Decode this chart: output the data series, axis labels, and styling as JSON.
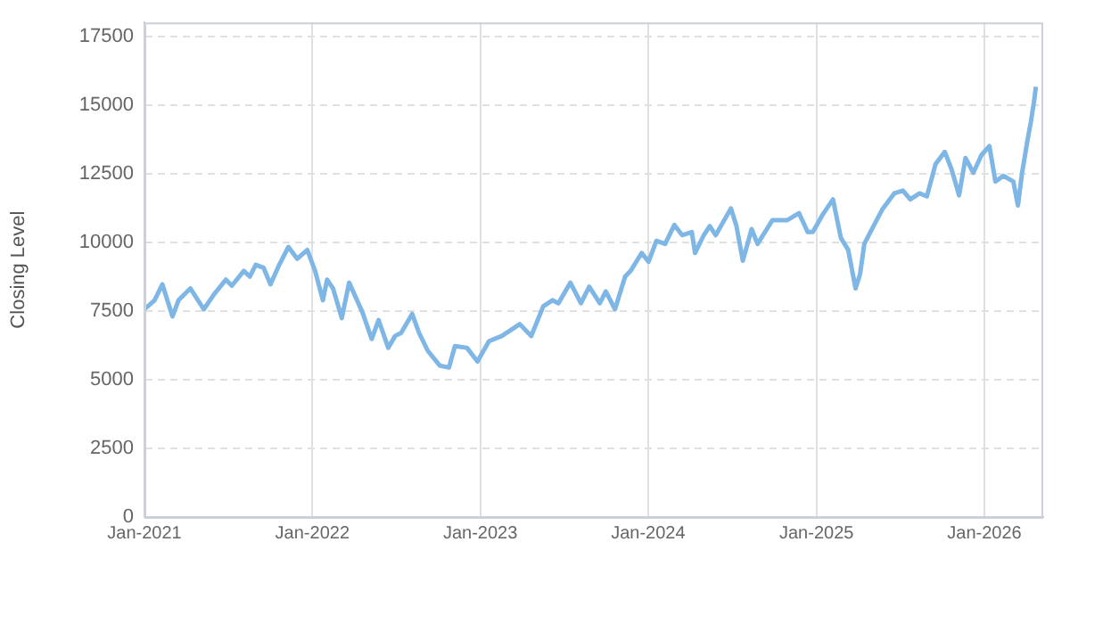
{
  "chart_data": {
    "type": "line",
    "ylabel": "Closing Level",
    "grid": true,
    "marker": "none",
    "legend": false,
    "xlim": [
      "2021-01-01",
      "2026-05-09"
    ],
    "xticks": [
      {
        "value": "2021-01",
        "label": "Jan-2021"
      },
      {
        "value": "2022-01",
        "label": "Jan-2022"
      },
      {
        "value": "2023-01",
        "label": "Jan-2023"
      },
      {
        "value": "2024-01",
        "label": "Jan-2024"
      },
      {
        "value": "2025-01",
        "label": "Jan-2025"
      },
      {
        "value": "2026-01",
        "label": "Jan-2026"
      }
    ],
    "ylim": [
      0,
      18000
    ],
    "yticks": [
      0,
      2500,
      5000,
      7500,
      10000,
      12500,
      15000,
      17500
    ],
    "series": [
      {
        "color": "#7eb6e6",
        "x": [
          "2021-01-01",
          "2021-01-23",
          "2021-02-09",
          "2021-03-03",
          "2021-03-16",
          "2021-04-11",
          "2021-05-10",
          "2021-06-01",
          "2021-06-27",
          "2021-07-10",
          "2021-08-05",
          "2021-08-18",
          "2021-08-31",
          "2021-09-17",
          "2021-10-02",
          "2021-10-21",
          "2021-11-10",
          "2021-11-29",
          "2021-12-21",
          "2022-01-07",
          "2022-01-24",
          "2022-02-02",
          "2022-02-15",
          "2022-03-06",
          "2022-03-22",
          "2022-04-20",
          "2022-05-10",
          "2022-05-25",
          "2022-06-15",
          "2022-06-30",
          "2022-07-13",
          "2022-08-06",
          "2022-08-21",
          "2022-09-09",
          "2022-10-05",
          "2022-10-25",
          "2022-11-07",
          "2022-12-03",
          "2022-12-26",
          "2023-01-20",
          "2023-02-17",
          "2023-03-28",
          "2023-04-22",
          "2023-05-18",
          "2023-06-07",
          "2023-06-20",
          "2023-07-16",
          "2023-08-08",
          "2023-08-26",
          "2023-09-18",
          "2023-10-01",
          "2023-10-21",
          "2023-11-12",
          "2023-11-24",
          "2023-12-18",
          "2024-01-02",
          "2024-01-19",
          "2024-02-07",
          "2024-02-27",
          "2024-03-15",
          "2024-04-05",
          "2024-04-12",
          "2024-05-01",
          "2024-05-14",
          "2024-05-27",
          "2024-06-29",
          "2024-07-11",
          "2024-07-25",
          "2024-08-13",
          "2024-08-26",
          "2024-09-27",
          "2024-10-29",
          "2024-11-24",
          "2024-12-13",
          "2024-12-24",
          "2025-01-15",
          "2025-02-06",
          "2025-02-23",
          "2025-03-11",
          "2025-03-27",
          "2025-04-06",
          "2025-04-15",
          "2025-05-05",
          "2025-05-24",
          "2025-06-19",
          "2025-07-08",
          "2025-07-24",
          "2025-08-13",
          "2025-08-29",
          "2025-09-17",
          "2025-10-07",
          "2025-10-22",
          "2025-11-07",
          "2025-11-21",
          "2025-12-08",
          "2025-12-26",
          "2026-01-12",
          "2026-01-25",
          "2026-02-11",
          "2026-03-05",
          "2026-03-15",
          "2026-03-24",
          "2026-04-06",
          "2026-04-12",
          "2026-04-19",
          "2026-04-23"
        ],
        "values": [
          7560,
          7890,
          8470,
          7300,
          7890,
          8320,
          7560,
          8100,
          8640,
          8420,
          8960,
          8750,
          9180,
          9070,
          8470,
          9180,
          9830,
          9400,
          9720,
          8960,
          7890,
          8640,
          8320,
          7240,
          8530,
          7450,
          6480,
          7170,
          6160,
          6590,
          6700,
          7390,
          6700,
          6050,
          5510,
          5440,
          6220,
          6160,
          5660,
          6400,
          6590,
          7020,
          6590,
          7670,
          7890,
          7780,
          8530,
          7780,
          8380,
          7780,
          8210,
          7560,
          8750,
          8960,
          9610,
          9290,
          10050,
          9940,
          10630,
          10260,
          10370,
          9610,
          10260,
          10590,
          10260,
          11230,
          10590,
          9330,
          10480,
          9940,
          10800,
          10800,
          11060,
          10370,
          10370,
          11020,
          11560,
          10160,
          9720,
          8320,
          8860,
          9940,
          10590,
          11190,
          11780,
          11880,
          11560,
          11780,
          11670,
          12850,
          13290,
          12640,
          11710,
          13070,
          12530,
          13180,
          13500,
          12210,
          12420,
          12210,
          11340,
          12530,
          13830,
          14370,
          15120,
          15660
        ]
      }
    ]
  }
}
